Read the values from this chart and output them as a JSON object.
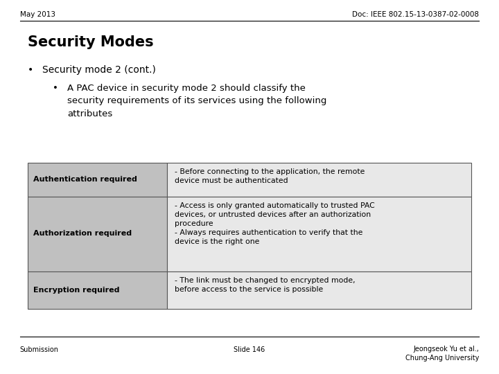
{
  "bg_color": "#ffffff",
  "header_left": "May 2013",
  "header_right": "Doc: IEEE 802.15-13-0387-02-0008",
  "title": "Security Modes",
  "bullet1": "Security mode 2 (cont.)",
  "bullet2_line1": "A PAC device in security mode 2 should classify the",
  "bullet2_line2": "security requirements of its services using the following",
  "bullet2_line3": "attributes",
  "table": {
    "rows": [
      {
        "label": "Authentication required",
        "desc": "- Before connecting to the application, the remote\ndevice must be authenticated"
      },
      {
        "label": "Authorization required",
        "desc": "- Access is only granted automatically to trusted PAC\ndevices, or untrusted devices after an authorization\nprocedure\n- Always requires authentication to verify that the\ndevice is the right one"
      },
      {
        "label": "Encryption required",
        "desc": "- The link must be changed to encrypted mode,\nbefore access to the service is possible"
      }
    ],
    "label_bg": "#c0c0c0",
    "desc_bg": "#e8e8e8"
  },
  "footer_left": "Submission",
  "footer_center": "Slide 146",
  "footer_right": "Jeongseok Yu et al.,\nChung-Ang University"
}
